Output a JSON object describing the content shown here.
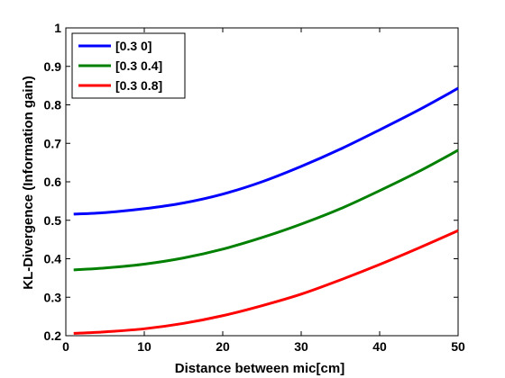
{
  "chart_data": {
    "type": "line",
    "title": "",
    "xlabel": "Distance between mic[cm]",
    "ylabel": "KL-Divergence (Information gain)",
    "xlim": [
      0,
      50
    ],
    "ylim": [
      0.2,
      1
    ],
    "xticks": [
      0,
      10,
      20,
      30,
      40,
      50
    ],
    "yticks": [
      0.2,
      0.3,
      0.4,
      0.5,
      0.6,
      0.7,
      0.8,
      0.9,
      1
    ],
    "ytick_labels": [
      "0.2",
      "0.3",
      "0.4",
      "0.5",
      "0.6",
      "0.7",
      "0.8",
      "0.9",
      "1"
    ],
    "grid": false,
    "legend_position": "top-left",
    "x": [
      1,
      5,
      10,
      15,
      20,
      25,
      30,
      35,
      40,
      45,
      50
    ],
    "series": [
      {
        "name": "[0.3 0]",
        "color": "#0000ff",
        "values": [
          0.516,
          0.52,
          0.53,
          0.545,
          0.568,
          0.6,
          0.64,
          0.685,
          0.735,
          0.787,
          0.843
        ]
      },
      {
        "name": "[0.3 0.4]",
        "color": "#008000",
        "values": [
          0.371,
          0.376,
          0.386,
          0.402,
          0.425,
          0.455,
          0.49,
          0.53,
          0.577,
          0.627,
          0.682
        ]
      },
      {
        "name": "[0.3 0.8]",
        "color": "#ff0000",
        "values": [
          0.206,
          0.21,
          0.218,
          0.232,
          0.252,
          0.278,
          0.308,
          0.345,
          0.385,
          0.428,
          0.473
        ]
      }
    ]
  }
}
